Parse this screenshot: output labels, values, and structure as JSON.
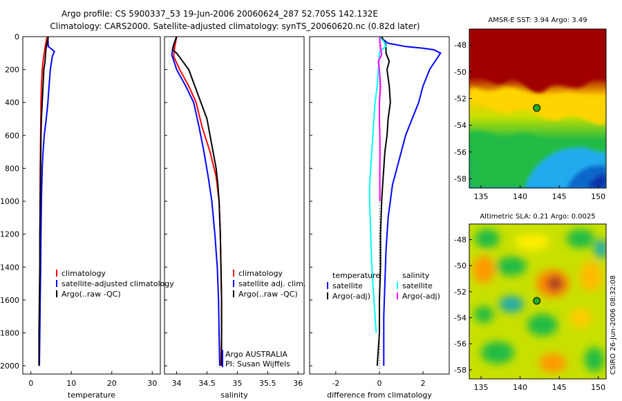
{
  "title_line1": "Argo profile: CS 5900337_53 19-Jun-2006 20060624_287 52.705S 142.132E",
  "title_line2": "Climatology: CARS2000. Satellite-adjusted climatology: synTS_20060620.nc (0.82d later)",
  "side_label": "CSIRO 26-Jun-2006 08:32:08",
  "colors": {
    "red": "#ff0000",
    "blue": "#0000ff",
    "black": "#000000",
    "cyan": "#00ffff",
    "magenta": "#ff00ff"
  },
  "chart_data": [
    {
      "type": "line",
      "xlabel": "temperature",
      "xlim": [
        -2,
        32
      ],
      "ylim": [
        2050,
        0
      ],
      "xticks": [
        "0",
        "10",
        "20",
        "30"
      ],
      "yticks": [
        "0",
        "200",
        "400",
        "600",
        "800",
        "1000",
        "1200",
        "1400",
        "1600",
        "1800",
        "2000"
      ],
      "legend": [
        "climatology",
        "satellite-adjusted climatology",
        "Argo(..raw -QC)"
      ],
      "series": [
        {
          "name": "climatology",
          "color": "red",
          "points": [
            [
              4.0,
              0
            ],
            [
              3.6,
              50
            ],
            [
              3.3,
              100
            ],
            [
              3.0,
              150
            ],
            [
              2.8,
              200
            ],
            [
              2.6,
              300
            ],
            [
              2.5,
              400
            ],
            [
              2.4,
              600
            ],
            [
              2.3,
              800
            ],
            [
              2.25,
              1050
            ]
          ]
        },
        {
          "name": "satellite-adjusted climatology",
          "color": "blue",
          "points": [
            [
              4.2,
              0
            ],
            [
              4.3,
              60
            ],
            [
              5.8,
              90
            ],
            [
              5.3,
              120
            ],
            [
              4.8,
              200
            ],
            [
              4.5,
              300
            ],
            [
              4.2,
              400
            ],
            [
              3.8,
              500
            ],
            [
              3.3,
              600
            ],
            [
              3.0,
              700
            ],
            [
              2.8,
              800
            ],
            [
              2.6,
              1000
            ],
            [
              2.5,
              1200
            ],
            [
              2.4,
              1400
            ],
            [
              2.3,
              1600
            ],
            [
              2.2,
              1800
            ],
            [
              2.1,
              2000
            ]
          ]
        },
        {
          "name": "Argo(..raw -QC)",
          "color": "black",
          "points": [
            [
              4.3,
              0
            ],
            [
              4.0,
              40
            ],
            [
              3.7,
              80
            ],
            [
              3.5,
              150
            ],
            [
              3.2,
              200
            ],
            [
              3.0,
              300
            ],
            [
              2.8,
              400
            ],
            [
              2.6,
              500
            ],
            [
              2.5,
              600
            ],
            [
              2.4,
              800
            ],
            [
              2.3,
              1000
            ],
            [
              2.2,
              1200
            ],
            [
              2.2,
              1400
            ],
            [
              2.1,
              1600
            ],
            [
              2.0,
              1800
            ],
            [
              2.0,
              2000
            ]
          ]
        }
      ]
    },
    {
      "type": "line",
      "xlabel": "salinity",
      "xlim": [
        33.8,
        36.1
      ],
      "ylim": [
        2050,
        0
      ],
      "xticks": [
        "34",
        "34.5",
        "35",
        "35.5",
        "36"
      ],
      "legend": [
        "climatology",
        "satellite adj. clim.",
        "Argo(..raw -QC)"
      ],
      "annotation": [
        "Argo AUSTRALIA",
        "PI: Susan Wijffels"
      ],
      "series": [
        {
          "name": "climatology",
          "color": "red",
          "points": [
            [
              34.0,
              0
            ],
            [
              33.97,
              60
            ],
            [
              33.95,
              120
            ],
            [
              34.05,
              200
            ],
            [
              34.2,
              300
            ],
            [
              34.32,
              400
            ],
            [
              34.42,
              550
            ],
            [
              34.55,
              700
            ],
            [
              34.65,
              850
            ],
            [
              34.7,
              1000
            ],
            [
              34.72,
              1200
            ],
            [
              34.73,
              1400
            ],
            [
              34.74,
              1600
            ],
            [
              34.74,
              1800
            ],
            [
              34.73,
              2000
            ]
          ]
        },
        {
          "name": "satellite adj. clim.",
          "color": "blue",
          "points": [
            [
              34.0,
              0
            ],
            [
              33.95,
              50
            ],
            [
              33.92,
              110
            ],
            [
              34.0,
              200
            ],
            [
              34.15,
              300
            ],
            [
              34.28,
              400
            ],
            [
              34.37,
              550
            ],
            [
              34.45,
              700
            ],
            [
              34.52,
              850
            ],
            [
              34.58,
              1000
            ],
            [
              34.63,
              1200
            ],
            [
              34.67,
              1400
            ],
            [
              34.69,
              1600
            ],
            [
              34.7,
              1800
            ],
            [
              34.71,
              2000
            ]
          ]
        },
        {
          "name": "Argo(..raw -QC)",
          "color": "black",
          "points": [
            [
              34.0,
              0
            ],
            [
              33.96,
              40
            ],
            [
              33.93,
              80
            ],
            [
              34.0,
              100
            ],
            [
              34.1,
              150
            ],
            [
              34.2,
              200
            ],
            [
              34.3,
              300
            ],
            [
              34.4,
              400
            ],
            [
              34.5,
              500
            ],
            [
              34.55,
              600
            ],
            [
              34.6,
              700
            ],
            [
              34.65,
              800
            ],
            [
              34.68,
              900
            ],
            [
              34.7,
              1000
            ],
            [
              34.72,
              1200
            ],
            [
              34.73,
              1400
            ],
            [
              34.74,
              1600
            ],
            [
              34.74,
              1800
            ],
            [
              34.74,
              2000
            ]
          ]
        }
      ]
    },
    {
      "type": "line",
      "xlabel": "difference from climatology",
      "xlim": [
        -3.2,
        3.2
      ],
      "ylim": [
        2050,
        0
      ],
      "xticks": [
        "-2",
        "0",
        "2"
      ],
      "legend_left": [
        "temperature",
        "satellite",
        "Argo(-adj)"
      ],
      "legend_right": [
        "salinity",
        "satellite",
        "Argo(-adj)"
      ],
      "series": [
        {
          "name": "temperature satellite",
          "color": "blue",
          "points": [
            [
              0.0,
              0
            ],
            [
              0.4,
              40
            ],
            [
              1.2,
              60
            ],
            [
              2.0,
              70
            ],
            [
              2.5,
              80
            ],
            [
              2.8,
              100
            ],
            [
              2.6,
              140
            ],
            [
              2.3,
              200
            ],
            [
              2.0,
              300
            ],
            [
              1.8,
              400
            ],
            [
              1.5,
              500
            ],
            [
              1.2,
              600
            ],
            [
              1.0,
              700
            ],
            [
              0.8,
              800
            ],
            [
              0.6,
              900
            ],
            [
              0.5,
              1000
            ],
            [
              0.4,
              1100
            ],
            [
              0.3,
              1300
            ],
            [
              0.25,
              1500
            ],
            [
              0.2,
              1700
            ],
            [
              0.2,
              2000
            ]
          ]
        },
        {
          "name": "temperature Argo(-adj)",
          "color": "black",
          "points": [
            [
              0.1,
              0
            ],
            [
              0.3,
              50
            ],
            [
              0.3,
              100
            ],
            [
              0.45,
              150
            ],
            [
              0.35,
              200
            ],
            [
              0.45,
              300
            ],
            [
              0.5,
              400
            ],
            [
              0.4,
              500
            ],
            [
              0.35,
              600
            ],
            [
              0.25,
              700
            ],
            [
              0.2,
              800
            ],
            [
              0.15,
              900
            ],
            [
              0.1,
              1000
            ],
            [
              0.05,
              1200
            ],
            [
              0.05,
              1400
            ],
            [
              0.0,
              1600
            ],
            [
              0.0,
              1800
            ],
            [
              -0.1,
              2000
            ]
          ]
        },
        {
          "name": "salinity satellite",
          "color": "cyan",
          "points": [
            [
              0.0,
              0
            ],
            [
              0.2,
              30
            ],
            [
              0.3,
              60
            ],
            [
              0.1,
              80
            ],
            [
              0.0,
              100
            ],
            [
              -0.05,
              200
            ],
            [
              -0.1,
              300
            ],
            [
              -0.2,
              400
            ],
            [
              -0.25,
              500
            ],
            [
              -0.3,
              600
            ],
            [
              -0.35,
              700
            ],
            [
              -0.4,
              800
            ],
            [
              -0.45,
              900
            ],
            [
              -0.45,
              1000
            ],
            [
              -0.4,
              1200
            ],
            [
              -0.35,
              1400
            ],
            [
              -0.3,
              1500
            ],
            [
              -0.25,
              1600
            ],
            [
              -0.2,
              1700
            ],
            [
              -0.15,
              1800
            ]
          ]
        },
        {
          "name": "salinity Argo(-adj)",
          "color": "magenta",
          "points": [
            [
              0.0,
              0
            ],
            [
              0.05,
              60
            ],
            [
              0.1,
              110
            ],
            [
              -0.05,
              150
            ],
            [
              0.0,
              200
            ],
            [
              0.05,
              300
            ],
            [
              0.0,
              400
            ],
            [
              0.0,
              500
            ],
            [
              0.02,
              600
            ],
            [
              0.03,
              700
            ],
            [
              0.02,
              800
            ],
            [
              0.02,
              900
            ],
            [
              0.02,
              1000
            ]
          ]
        }
      ]
    },
    {
      "type": "heatmap",
      "title": "AMSR-E SST: 3.94 Argo: 3.49",
      "xticks": [
        "135",
        "140",
        "145",
        "150"
      ],
      "yticks": [
        "-48",
        "-50",
        "-52",
        "-54",
        "-56",
        "-58"
      ],
      "xlim": [
        133.5,
        151.0
      ],
      "ylim": [
        -58.7,
        -46.8
      ],
      "marker": [
        142.132,
        -52.705
      ]
    },
    {
      "type": "heatmap",
      "title": "Altimetric SLA: 0.21 Argo: 0.0025",
      "xticks": [
        "135",
        "140",
        "145",
        "150"
      ],
      "yticks": [
        "-48",
        "-50",
        "-52",
        "-54",
        "-56",
        "-58"
      ],
      "xlim": [
        133.5,
        151.0
      ],
      "ylim": [
        -58.7,
        -46.8
      ],
      "marker": [
        142.132,
        -52.705
      ]
    }
  ]
}
